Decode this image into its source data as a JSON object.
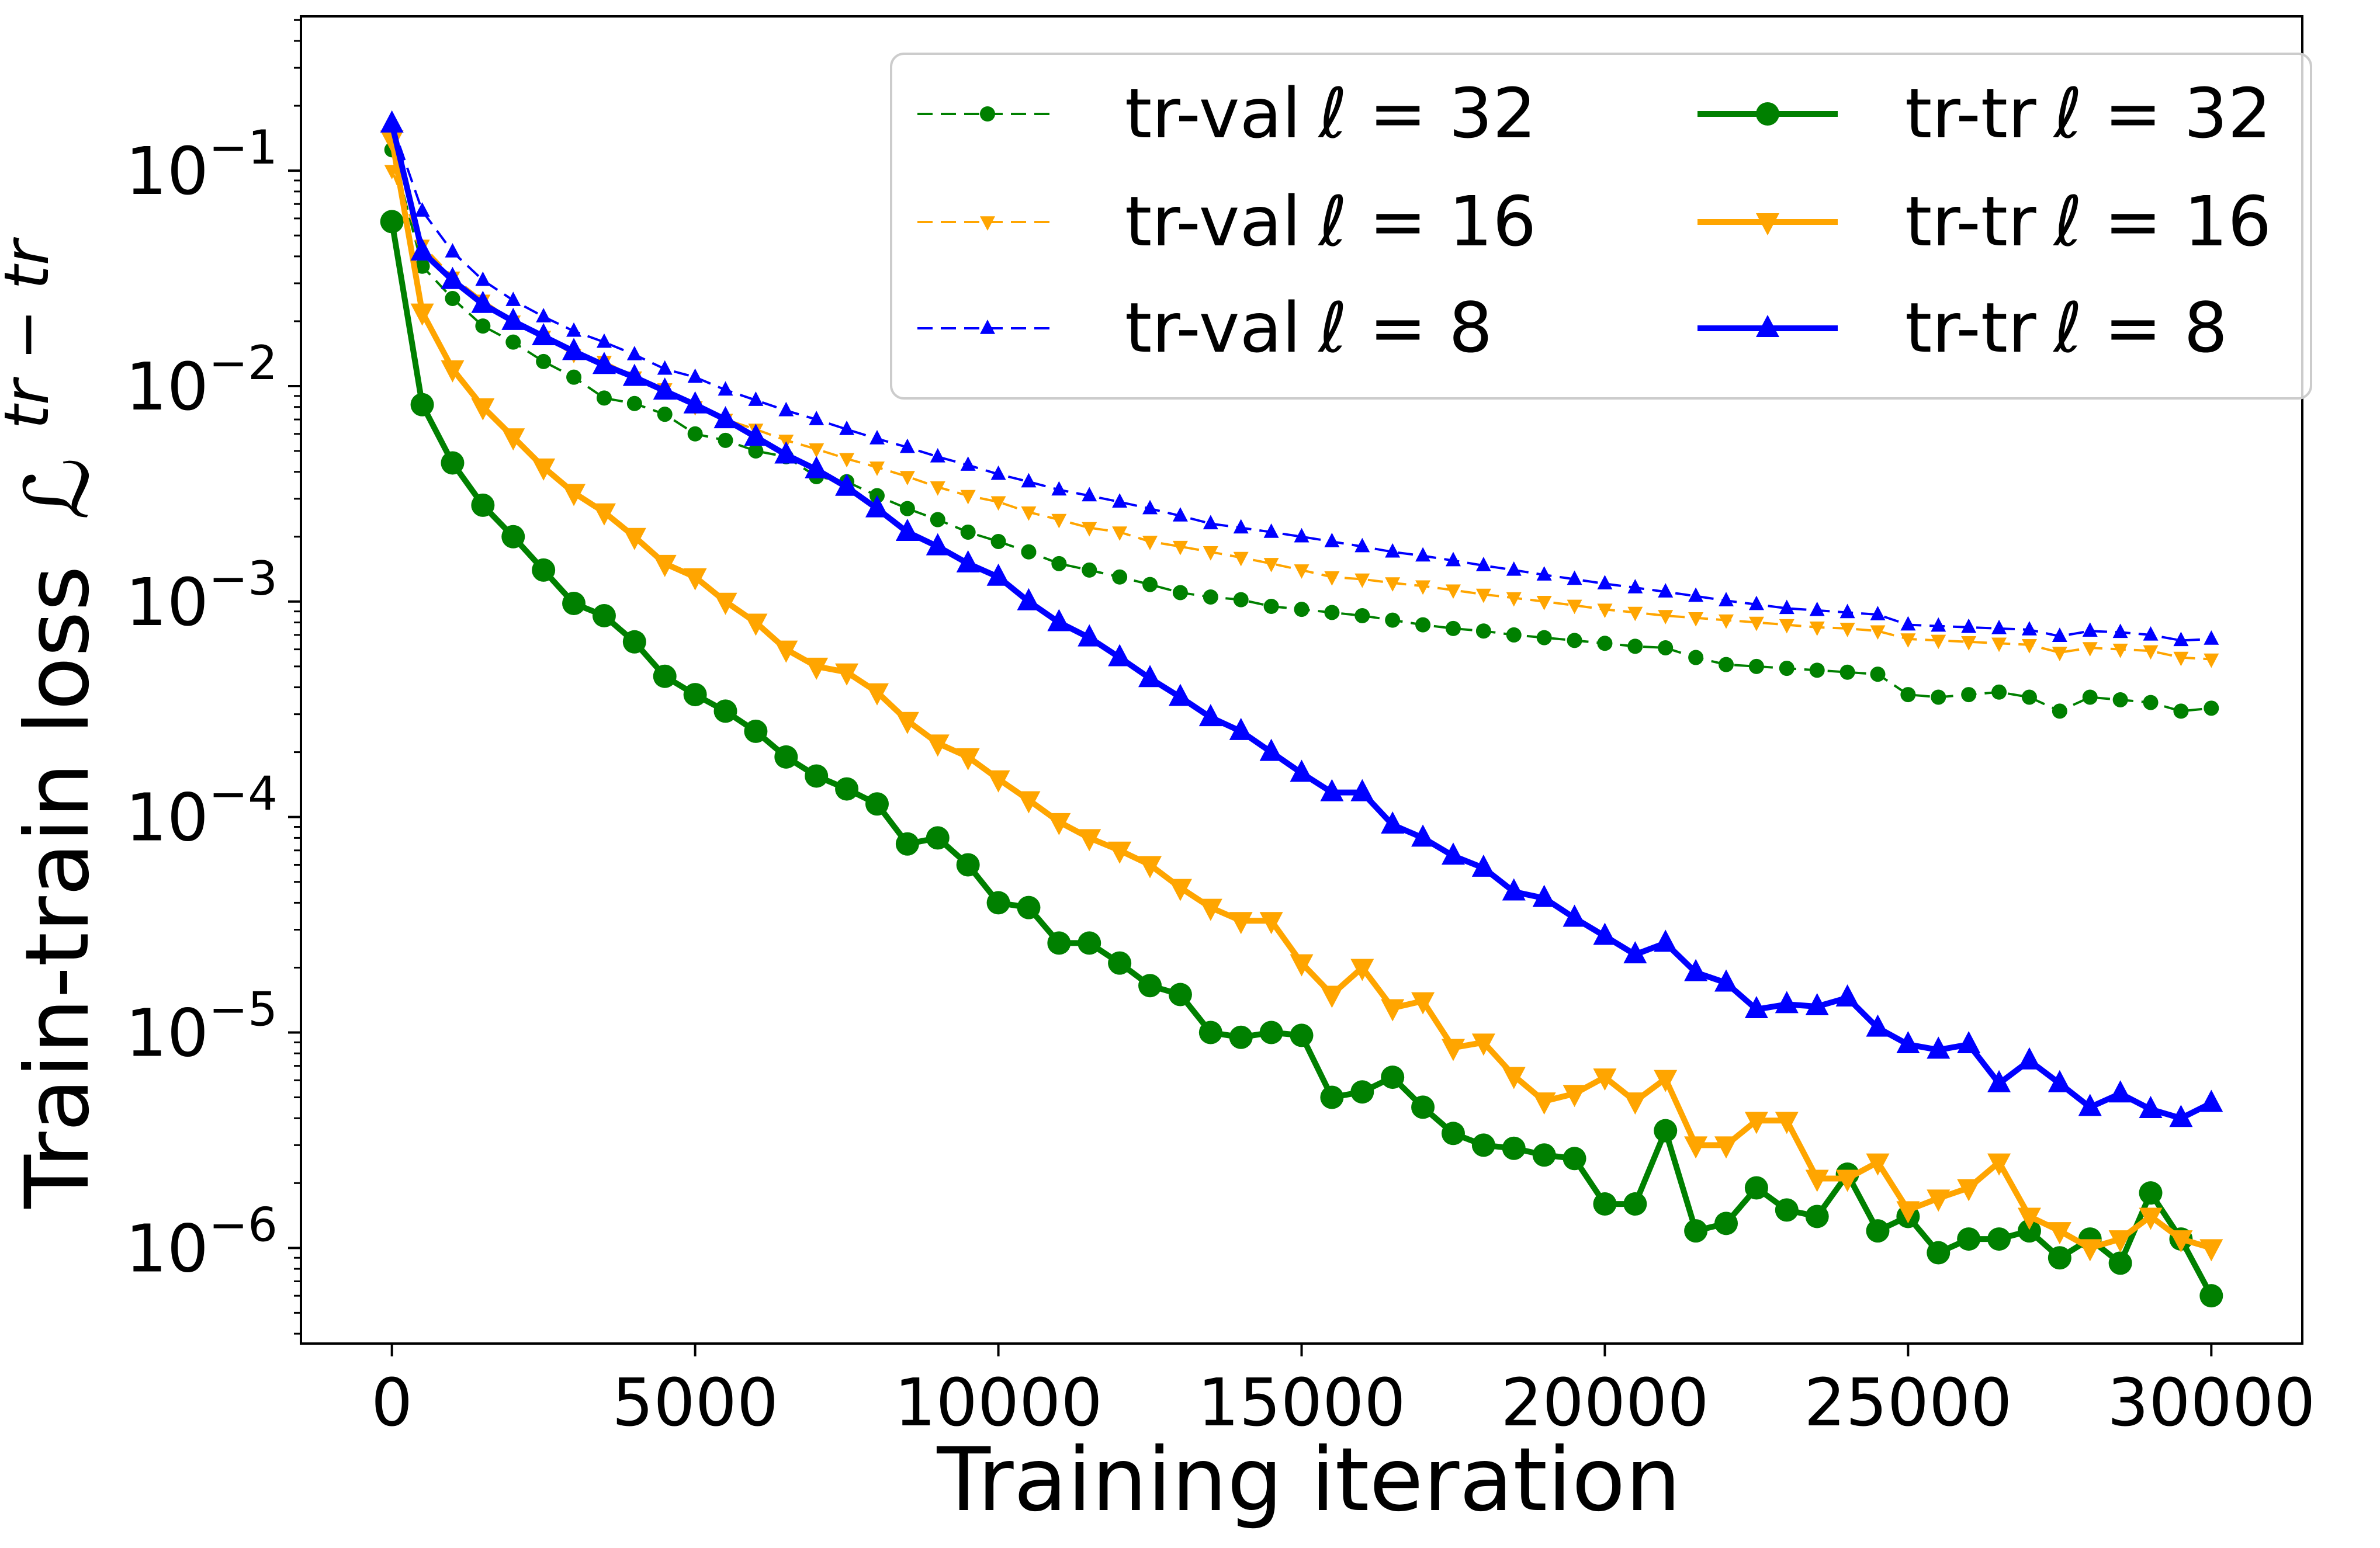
{
  "chart_data": {
    "type": "line",
    "xlabel": "Training iteration",
    "ylabel_prefix": "Train-train loss",
    "ylabel_symbol": "ℒ",
    "ylabel_superscript": "tr − tr",
    "yscale": "log",
    "xlim": [
      -1500,
      31500
    ],
    "ylim": [
      3.6e-07,
      0.52
    ],
    "grid": false,
    "legend_position": "top-right",
    "legend_columns": 2,
    "x_ticks": [
      0,
      5000,
      10000,
      15000,
      20000,
      25000,
      30000
    ],
    "x_tick_labels": [
      "0",
      "5000",
      "10000",
      "15000",
      "20000",
      "25000",
      "30000"
    ],
    "y_ticks": [
      1e-06,
      1e-05,
      0.0001,
      0.001,
      0.01,
      0.1
    ],
    "y_tick_labels": [
      {
        "base": "10",
        "exp": "−6"
      },
      {
        "base": "10",
        "exp": "−5"
      },
      {
        "base": "10",
        "exp": "−4"
      },
      {
        "base": "10",
        "exp": "−3"
      },
      {
        "base": "10",
        "exp": "−2"
      },
      {
        "base": "10",
        "exp": "−1"
      }
    ],
    "x": [
      0,
      500,
      1000,
      1500,
      2000,
      2500,
      3000,
      3500,
      4000,
      4500,
      5000,
      5500,
      6000,
      6500,
      7000,
      7500,
      8000,
      8500,
      9000,
      9500,
      10000,
      10500,
      11000,
      11500,
      12000,
      12500,
      13000,
      13500,
      14000,
      14500,
      15000,
      15500,
      16000,
      16500,
      17000,
      17500,
      18000,
      18500,
      19000,
      19500,
      20000,
      20500,
      21000,
      21500,
      22000,
      22500,
      23000,
      23500,
      24000,
      24500,
      25000,
      25500,
      26000,
      26500,
      27000,
      27500,
      28000,
      28500,
      29000,
      29500,
      30000
    ],
    "series": [
      {
        "name": "tr-val ℓ = 32",
        "label_prefix": "tr-val",
        "label_eq": "ℓ = 32",
        "color": "#008000",
        "style": "dashed",
        "marker": "circle",
        "values": [
          0.125,
          0.036,
          0.0255,
          0.019,
          0.016,
          0.013,
          0.011,
          0.0088,
          0.0083,
          0.0074,
          0.006,
          0.0056,
          0.005,
          0.0047,
          0.0038,
          0.0036,
          0.0031,
          0.0027,
          0.0024,
          0.0021,
          0.0019,
          0.0017,
          0.0015,
          0.0014,
          0.0013,
          0.0012,
          0.0011,
          0.00105,
          0.00102,
          0.00095,
          0.00092,
          0.00089,
          0.00086,
          0.00082,
          0.00078,
          0.00075,
          0.00073,
          0.0007,
          0.00068,
          0.00066,
          0.00064,
          0.00062,
          0.00061,
          0.00055,
          0.00051,
          0.0005,
          0.00049,
          0.00048,
          0.00047,
          0.00046,
          0.00037,
          0.00036,
          0.00037,
          0.00038,
          0.00036,
          0.00031,
          0.00036,
          0.00035,
          0.00034,
          0.00031,
          0.00032
        ]
      },
      {
        "name": "tr-val ℓ = 16",
        "label_prefix": "tr-val",
        "label_eq": "ℓ = 16",
        "color": "#FFA500",
        "style": "dashed",
        "marker": "triangle-down",
        "values": [
          0.1,
          0.045,
          0.032,
          0.025,
          0.02,
          0.017,
          0.014,
          0.013,
          0.011,
          0.0097,
          0.008,
          0.007,
          0.0063,
          0.0056,
          0.0051,
          0.0046,
          0.0042,
          0.0038,
          0.0034,
          0.0031,
          0.0029,
          0.0026,
          0.0024,
          0.0022,
          0.0021,
          0.0019,
          0.0018,
          0.0017,
          0.0016,
          0.0015,
          0.0014,
          0.0013,
          0.00127,
          0.00122,
          0.00118,
          0.00113,
          0.00108,
          0.00104,
          0.001,
          0.00096,
          0.00092,
          0.00089,
          0.00086,
          0.00084,
          0.00082,
          0.0008,
          0.00078,
          0.00076,
          0.00075,
          0.00073,
          0.00067,
          0.00066,
          0.00065,
          0.00064,
          0.00063,
          0.00058,
          0.00061,
          0.0006,
          0.00059,
          0.00055,
          0.00054
        ]
      },
      {
        "name": "tr-val ℓ = 8",
        "label_prefix": "tr-val",
        "label_eq": "ℓ = 8",
        "color": "#0000FF",
        "style": "dashed",
        "marker": "triangle-up",
        "values": [
          0.165,
          0.065,
          0.042,
          0.031,
          0.025,
          0.021,
          0.018,
          0.016,
          0.014,
          0.012,
          0.011,
          0.0096,
          0.0086,
          0.0077,
          0.007,
          0.0063,
          0.0057,
          0.0052,
          0.0047,
          0.0043,
          0.0039,
          0.0036,
          0.0033,
          0.0031,
          0.0029,
          0.0027,
          0.0025,
          0.0023,
          0.0022,
          0.0021,
          0.002,
          0.0019,
          0.0018,
          0.0017,
          0.00163,
          0.00155,
          0.00147,
          0.0014,
          0.00133,
          0.00127,
          0.00121,
          0.00116,
          0.00111,
          0.00106,
          0.00101,
          0.00097,
          0.00093,
          0.00091,
          0.00089,
          0.00087,
          0.00078,
          0.00077,
          0.00076,
          0.00075,
          0.00074,
          0.00069,
          0.00073,
          0.00072,
          0.0007,
          0.00066,
          0.00067
        ]
      },
      {
        "name": "tr-tr ℓ = 32",
        "label_prefix": "tr-tr",
        "label_eq": "ℓ = 32",
        "color": "#008000",
        "style": "solid",
        "marker": "circle",
        "values": [
          0.058,
          0.0082,
          0.0044,
          0.0028,
          0.002,
          0.0014,
          0.00098,
          0.00086,
          0.00065,
          0.00045,
          0.00037,
          0.00031,
          0.00025,
          0.00019,
          0.000155,
          0.000135,
          0.000115,
          7.5e-05,
          8e-05,
          6e-05,
          4e-05,
          3.8e-05,
          2.6e-05,
          2.6e-05,
          2.1e-05,
          1.65e-05,
          1.5e-05,
          1e-05,
          9.5e-06,
          1e-05,
          9.7e-06,
          5e-06,
          5.3e-06,
          6.2e-06,
          4.5e-06,
          3.4e-06,
          3e-06,
          2.9e-06,
          2.7e-06,
          2.6e-06,
          1.6e-06,
          1.6e-06,
          3.5e-06,
          1.2e-06,
          1.3e-06,
          1.9e-06,
          1.5e-06,
          1.4e-06,
          2.2e-06,
          1.2e-06,
          1.4e-06,
          9.5e-07,
          1.1e-06,
          1.1e-06,
          1.2e-06,
          9e-07,
          1.1e-06,
          8.5e-07,
          1.8e-06,
          1.1e-06,
          6e-07
        ]
      },
      {
        "name": "tr-tr ℓ = 16",
        "label_prefix": "tr-tr",
        "label_eq": "ℓ = 16",
        "color": "#FFA500",
        "style": "solid",
        "marker": "triangle-down",
        "values": [
          0.14,
          0.022,
          0.012,
          0.008,
          0.0058,
          0.0042,
          0.0032,
          0.0026,
          0.002,
          0.0015,
          0.0013,
          0.001,
          0.0008,
          0.0006,
          0.0005,
          0.00047,
          0.00038,
          0.00028,
          0.00022,
          0.00019,
          0.00015,
          0.00012,
          9.5e-05,
          8e-05,
          7e-05,
          6e-05,
          4.7e-05,
          3.8e-05,
          3.3e-05,
          3.3e-05,
          2.1e-05,
          1.5e-05,
          2e-05,
          1.3e-05,
          1.4e-05,
          8.5e-06,
          9e-06,
          6.3e-06,
          4.8e-06,
          5.2e-06,
          6.2e-06,
          4.8e-06,
          6.1e-06,
          3e-06,
          3e-06,
          3.9e-06,
          3.9e-06,
          2.1e-06,
          2.1e-06,
          2.5e-06,
          1.5e-06,
          1.7e-06,
          1.9e-06,
          2.5e-06,
          1.4e-06,
          1.2e-06,
          1e-06,
          1.1e-06,
          1.4e-06,
          1.1e-06,
          1e-06
        ]
      },
      {
        "name": "tr-tr ℓ = 8",
        "label_prefix": "tr-tr",
        "label_eq": "ℓ = 8",
        "color": "#0000FF",
        "style": "solid",
        "marker": "triangle-up",
        "values": [
          0.165,
          0.042,
          0.031,
          0.024,
          0.02,
          0.017,
          0.0145,
          0.0125,
          0.011,
          0.0095,
          0.0082,
          0.007,
          0.0058,
          0.0048,
          0.0041,
          0.0034,
          0.0027,
          0.0021,
          0.0018,
          0.0015,
          0.0013,
          0.001,
          0.0008,
          0.00068,
          0.00055,
          0.00044,
          0.00036,
          0.00029,
          0.00025,
          0.0002,
          0.00016,
          0.00013,
          0.00013,
          9.2e-05,
          8e-05,
          6.6e-05,
          5.8e-05,
          4.5e-05,
          4.2e-05,
          3.4e-05,
          2.8e-05,
          2.3e-05,
          2.6e-05,
          1.9e-05,
          1.7e-05,
          1.28e-05,
          1.35e-05,
          1.32e-05,
          1.45e-05,
          1.05e-05,
          8.8e-06,
          8.3e-06,
          8.8e-06,
          5.8e-06,
          7.4e-06,
          5.8e-06,
          4.5e-06,
          5.2e-06,
          4.4e-06,
          4e-06,
          4.7e-06
        ]
      }
    ]
  }
}
